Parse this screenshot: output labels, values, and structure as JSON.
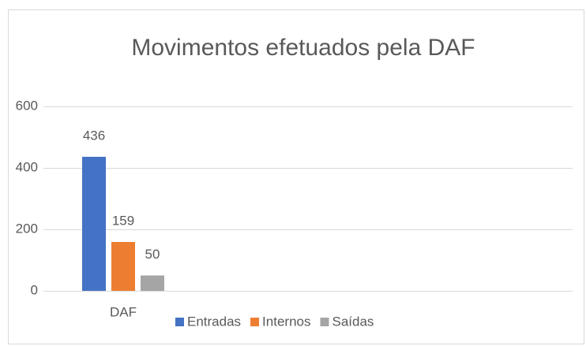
{
  "chart_data": {
    "type": "bar",
    "title": "Movimentos efetuados pela DAF",
    "categories": [
      "DAF"
    ],
    "series": [
      {
        "name": "Entradas",
        "color": "#4472c4",
        "values": [
          436
        ]
      },
      {
        "name": "Internos",
        "color": "#ed7d31",
        "values": [
          159
        ]
      },
      {
        "name": "Saídas",
        "color": "#a5a5a5",
        "values": [
          50
        ]
      }
    ],
    "ylim": [
      0,
      600
    ],
    "yticks": [
      0,
      200,
      400,
      600
    ],
    "grid": true,
    "legend": "bottom"
  }
}
